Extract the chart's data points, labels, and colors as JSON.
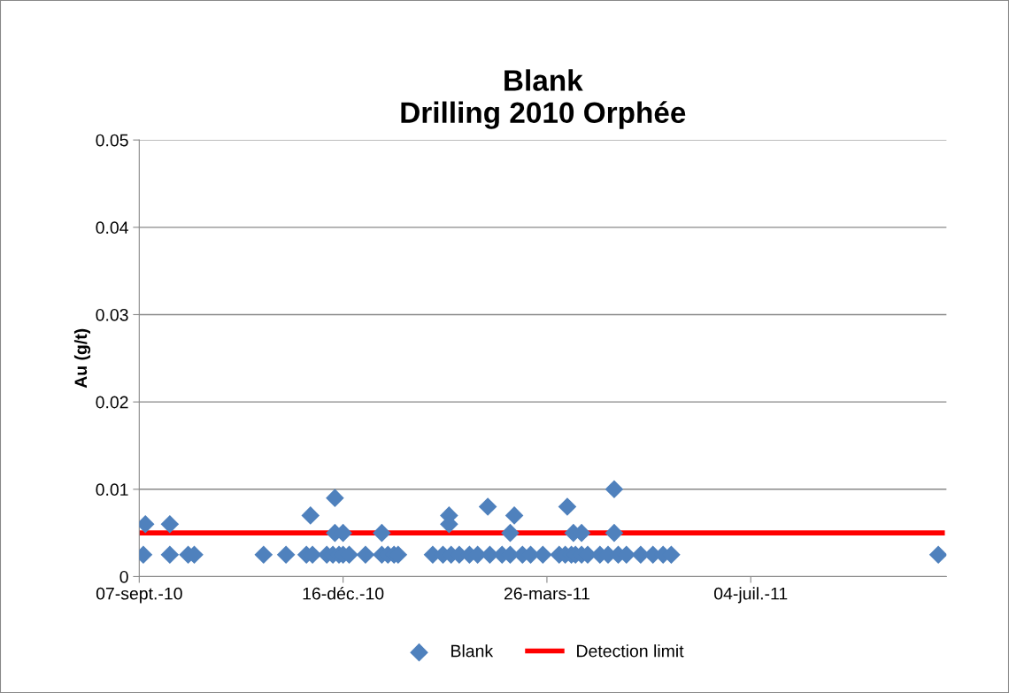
{
  "chart_data": {
    "type": "scatter",
    "title": "Blank\nDrilling 2010 Orphée",
    "ylabel": "Au (g/t)",
    "xlim": [
      "2010-09-07",
      "2011-10-08"
    ],
    "xticks": [
      {
        "value": "2010-09-07",
        "label": "07-sept.-10"
      },
      {
        "value": "2010-12-16",
        "label": "16-déc.-10"
      },
      {
        "value": "2011-03-26",
        "label": "26-mars-11"
      },
      {
        "value": "2011-07-04",
        "label": "04-juil.-11"
      }
    ],
    "ylim": [
      0,
      0.05
    ],
    "yticks": [
      {
        "value": 0,
        "label": "0"
      },
      0.01,
      0.02,
      0.03,
      0.04,
      0.05
    ],
    "grid": "y",
    "legend": "bottom",
    "series": [
      {
        "name": "Blank",
        "marker": "diamond",
        "color": "#4f81bd",
        "x": [
          "2010-09-09",
          "2010-09-10",
          "2010-09-22",
          "2010-09-22",
          "2010-10-01",
          "2010-10-04",
          "2010-11-07",
          "2010-11-18",
          "2010-11-28",
          "2010-11-30",
          "2010-12-01",
          "2010-12-08",
          "2010-12-11",
          "2010-12-12",
          "2010-12-12",
          "2010-12-14",
          "2010-12-16",
          "2010-12-16",
          "2010-12-19",
          "2010-12-27",
          "2011-01-04",
          "2011-01-04",
          "2011-01-07",
          "2011-01-10",
          "2011-01-12",
          "2011-01-29",
          "2011-02-03",
          "2011-02-06",
          "2011-02-06",
          "2011-02-07",
          "2011-02-11",
          "2011-02-16",
          "2011-02-20",
          "2011-02-25",
          "2011-02-26",
          "2011-03-04",
          "2011-03-08",
          "2011-03-08",
          "2011-03-10",
          "2011-03-14",
          "2011-03-18",
          "2011-03-24",
          "2011-04-01",
          "2011-04-04",
          "2011-04-05",
          "2011-04-07",
          "2011-04-08",
          "2011-04-09",
          "2011-04-12",
          "2011-04-12",
          "2011-04-15",
          "2011-04-21",
          "2011-04-25",
          "2011-04-28",
          "2011-04-28",
          "2011-04-30",
          "2011-05-04",
          "2011-05-11",
          "2011-05-17",
          "2011-05-22",
          "2011-05-26",
          "2011-10-04"
        ],
        "values": [
          0.0025,
          0.006,
          0.006,
          0.0025,
          0.0025,
          0.0025,
          0.0025,
          0.0025,
          0.0025,
          0.007,
          0.0025,
          0.0025,
          0.0025,
          0.009,
          0.005,
          0.0025,
          0.005,
          0.0025,
          0.0025,
          0.0025,
          0.005,
          0.0025,
          0.0025,
          0.0025,
          0.0025,
          0.0025,
          0.0025,
          0.007,
          0.006,
          0.0025,
          0.0025,
          0.0025,
          0.0025,
          0.008,
          0.0025,
          0.0025,
          0.0025,
          0.005,
          0.007,
          0.0025,
          0.0025,
          0.0025,
          0.0025,
          0.0025,
          0.008,
          0.0025,
          0.005,
          0.0025,
          0.0025,
          0.005,
          0.0025,
          0.0025,
          0.0025,
          0.01,
          0.005,
          0.0025,
          0.0025,
          0.0025,
          0.0025,
          0.0025,
          0.0025,
          0.0025
        ]
      },
      {
        "name": "Detection limit",
        "type": "line",
        "marker": "none",
        "color": "#ff0000",
        "x": [
          "2010-09-07",
          "2011-10-06"
        ],
        "values": [
          0.005,
          0.005
        ]
      }
    ]
  }
}
